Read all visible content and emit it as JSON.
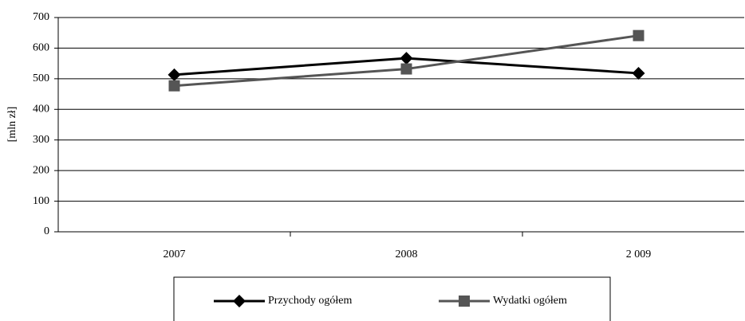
{
  "chart_data": {
    "type": "line",
    "y_label": "[mln zł]",
    "categories": [
      "2007",
      "2008",
      "2 009"
    ],
    "series": [
      {
        "name": "Przychody ogółem",
        "color": "#000000",
        "marker": "diamond",
        "values": [
          513,
          567,
          518
        ]
      },
      {
        "name": "Wydatki ogółem",
        "color": "#555555",
        "marker": "square",
        "values": [
          477,
          532,
          641
        ]
      }
    ],
    "ylim": [
      0,
      700
    ],
    "yticks": [
      0,
      100,
      200,
      300,
      400,
      500,
      600,
      700
    ],
    "grid": true
  }
}
